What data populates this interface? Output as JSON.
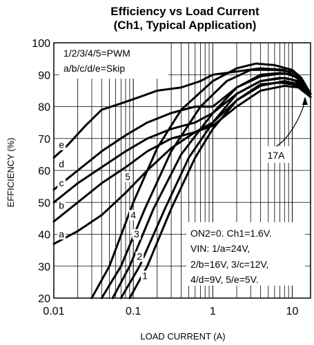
{
  "chart_data": {
    "type": "line",
    "title": "Efficiency vs Load Current",
    "subtitle": "(Ch1, Typical Application)",
    "xlabel": "LOAD CURRENT (A)",
    "ylabel": "EFFICIENCY (%)",
    "x_scale": "log",
    "xlim": [
      0.01,
      17
    ],
    "ylim": [
      20,
      100
    ],
    "x_ticks": [
      0.01,
      0.1,
      1,
      10
    ],
    "x_tick_labels": [
      "0.01",
      "0.1",
      "1",
      "10"
    ],
    "y_ticks": [
      20,
      30,
      40,
      50,
      60,
      70,
      80,
      90,
      100
    ],
    "y_tick_labels": [
      "20",
      "30",
      "40",
      "50",
      "60",
      "70",
      "80",
      "90",
      "100"
    ],
    "grid": true,
    "legend_text": [
      "1/2/3/4/5=PWM",
      "a/b/c/d/e=Skip"
    ],
    "conditions_text": [
      "ON2=0. Ch1=1.6V.",
      "VIN: 1/a=24V,",
      "2/b=16V, 3/c=12V,",
      "4/d=9V, 5/e=5V."
    ],
    "callout": {
      "text": "17A",
      "x": 17,
      "y": 84
    },
    "series": [
      {
        "name": "1",
        "label_at": [
          0.14,
          26
        ],
        "points": [
          [
            0.09,
            20
          ],
          [
            0.15,
            30
          ],
          [
            0.3,
            48
          ],
          [
            0.6,
            64
          ],
          [
            1,
            73
          ],
          [
            2,
            82
          ],
          [
            4,
            87
          ],
          [
            7,
            87.5
          ],
          [
            10,
            87
          ],
          [
            13,
            86
          ],
          [
            17,
            83
          ]
        ]
      },
      {
        "name": "2",
        "label_at": [
          0.12,
          32
        ],
        "points": [
          [
            0.07,
            20
          ],
          [
            0.12,
            30
          ],
          [
            0.25,
            48
          ],
          [
            0.5,
            64
          ],
          [
            1,
            75
          ],
          [
            2,
            84
          ],
          [
            4,
            88
          ],
          [
            7,
            89
          ],
          [
            10,
            88.5
          ],
          [
            13,
            87
          ],
          [
            17,
            84
          ]
        ]
      },
      {
        "name": "3",
        "label_at": [
          0.11,
          39
        ],
        "points": [
          [
            0.055,
            20
          ],
          [
            0.09,
            30
          ],
          [
            0.18,
            48
          ],
          [
            0.4,
            65
          ],
          [
            1,
            78
          ],
          [
            2,
            86
          ],
          [
            4,
            90
          ],
          [
            7,
            90.5
          ],
          [
            10,
            90
          ],
          [
            13,
            88
          ],
          [
            17,
            84
          ]
        ]
      },
      {
        "name": "4",
        "label_at": [
          0.1,
          45
        ],
        "points": [
          [
            0.04,
            20
          ],
          [
            0.07,
            30
          ],
          [
            0.14,
            48
          ],
          [
            0.3,
            66
          ],
          [
            0.7,
            80
          ],
          [
            1.5,
            88
          ],
          [
            3,
            91.5
          ],
          [
            6,
            91.5
          ],
          [
            10,
            91
          ],
          [
            13,
            89
          ],
          [
            17,
            84
          ]
        ]
      },
      {
        "name": "5",
        "label_at": [
          0.085,
          57
        ],
        "points": [
          [
            0.03,
            20
          ],
          [
            0.05,
            30
          ],
          [
            0.1,
            50
          ],
          [
            0.2,
            67
          ],
          [
            0.4,
            79
          ],
          [
            1,
            88
          ],
          [
            2,
            92
          ],
          [
            3.5,
            93.5
          ],
          [
            6,
            93
          ],
          [
            10,
            91.5
          ],
          [
            13,
            89
          ],
          [
            17,
            84
          ]
        ]
      },
      {
        "name": "a",
        "label_at": [
          0.0125,
          39
        ],
        "points": [
          [
            0.01,
            37
          ],
          [
            0.02,
            41
          ],
          [
            0.04,
            46
          ],
          [
            0.08,
            53
          ],
          [
            0.15,
            60
          ],
          [
            0.3,
            67
          ],
          [
            0.6,
            72
          ],
          [
            1,
            74
          ],
          [
            2,
            80
          ],
          [
            4,
            85
          ],
          [
            8,
            86.5
          ],
          [
            12,
            86
          ],
          [
            17,
            83
          ]
        ]
      },
      {
        "name": "b",
        "label_at": [
          0.0125,
          48
        ],
        "points": [
          [
            0.01,
            44
          ],
          [
            0.02,
            50
          ],
          [
            0.04,
            56
          ],
          [
            0.08,
            61
          ],
          [
            0.15,
            66
          ],
          [
            0.3,
            70
          ],
          [
            0.6,
            72
          ],
          [
            1,
            75
          ],
          [
            2,
            82
          ],
          [
            4,
            86.5
          ],
          [
            8,
            88
          ],
          [
            12,
            87
          ],
          [
            17,
            84
          ]
        ]
      },
      {
        "name": "c",
        "label_at": [
          0.0125,
          55
        ],
        "points": [
          [
            0.01,
            50
          ],
          [
            0.02,
            56
          ],
          [
            0.04,
            61
          ],
          [
            0.08,
            66
          ],
          [
            0.15,
            70
          ],
          [
            0.3,
            73
          ],
          [
            0.6,
            75
          ],
          [
            1,
            78
          ],
          [
            2,
            84
          ],
          [
            4,
            88
          ],
          [
            8,
            89
          ],
          [
            12,
            88
          ],
          [
            17,
            84
          ]
        ]
      },
      {
        "name": "d",
        "label_at": [
          0.0125,
          61
        ],
        "points": [
          [
            0.01,
            54
          ],
          [
            0.02,
            60
          ],
          [
            0.04,
            66
          ],
          [
            0.08,
            71
          ],
          [
            0.15,
            75
          ],
          [
            0.3,
            78
          ],
          [
            0.6,
            80
          ],
          [
            1,
            80
          ],
          [
            2,
            86
          ],
          [
            4,
            89.5
          ],
          [
            8,
            90.5
          ],
          [
            12,
            89
          ],
          [
            17,
            84
          ]
        ]
      },
      {
        "name": "e",
        "label_at": [
          0.0125,
          67
        ],
        "points": [
          [
            0.01,
            64
          ],
          [
            0.015,
            68
          ],
          [
            0.025,
            74
          ],
          [
            0.04,
            79
          ],
          [
            0.07,
            81
          ],
          [
            0.12,
            83
          ],
          [
            0.2,
            85
          ],
          [
            0.4,
            86
          ],
          [
            0.7,
            88
          ],
          [
            1,
            90
          ],
          [
            2,
            91
          ],
          [
            4,
            92
          ],
          [
            8,
            91.5
          ],
          [
            12,
            89
          ],
          [
            17,
            84
          ]
        ]
      }
    ]
  }
}
